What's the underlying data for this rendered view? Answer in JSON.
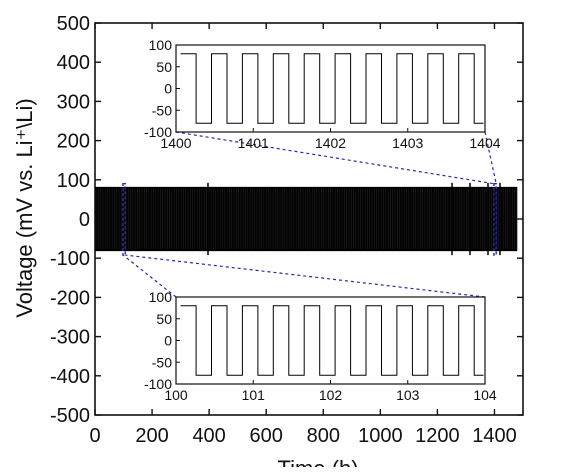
{
  "chart_data": [
    {
      "type": "line",
      "role": "main",
      "xlabel": "Time (h)",
      "ylabel": "Voltage (mV vs. Li⁺\\Li)",
      "xlim": [
        0,
        1500
      ],
      "ylim": [
        -500,
        500
      ],
      "xticks": [
        0,
        200,
        400,
        600,
        800,
        1000,
        1200,
        1400
      ],
      "yticks": [
        500,
        400,
        300,
        200,
        100,
        0,
        -100,
        -200,
        -300,
        -400,
        -500
      ],
      "series": [
        {
          "color": "#000000",
          "x": [
            0,
            1480
          ],
          "upper": 82,
          "lower": -82,
          "cycle_period_h": 1
        }
      ],
      "highlight_boxes": [
        {
          "x": [
            98,
            106
          ],
          "y": [
            -92,
            90
          ]
        },
        {
          "x": [
            1398,
            1406
          ],
          "y": [
            -92,
            90
          ]
        }
      ],
      "grid": false,
      "legend": "none"
    },
    {
      "type": "line",
      "role": "inset",
      "position": "top",
      "xlim": [
        1400,
        1404
      ],
      "ylim": [
        -100,
        100
      ],
      "xticks": [
        1400,
        1401,
        1402,
        1403,
        1404
      ],
      "yticks": [
        100,
        50,
        0,
        -50,
        -100
      ],
      "series": [
        {
          "color": "#000000",
          "period": 0.4,
          "high": 80,
          "low": -80
        }
      ]
    },
    {
      "type": "line",
      "role": "inset",
      "position": "bottom",
      "xlim": [
        100,
        104
      ],
      "ylim": [
        -100,
        100
      ],
      "xticks": [
        100,
        101,
        102,
        103,
        104
      ],
      "yticks": [
        100,
        50,
        0,
        -50,
        -100
      ],
      "series": [
        {
          "color": "#000000",
          "period": 0.4,
          "high": 80,
          "low": -80
        }
      ]
    }
  ],
  "colors": {
    "axis": "#111111",
    "data": "#000000",
    "highlight": "#2a2aa8"
  }
}
